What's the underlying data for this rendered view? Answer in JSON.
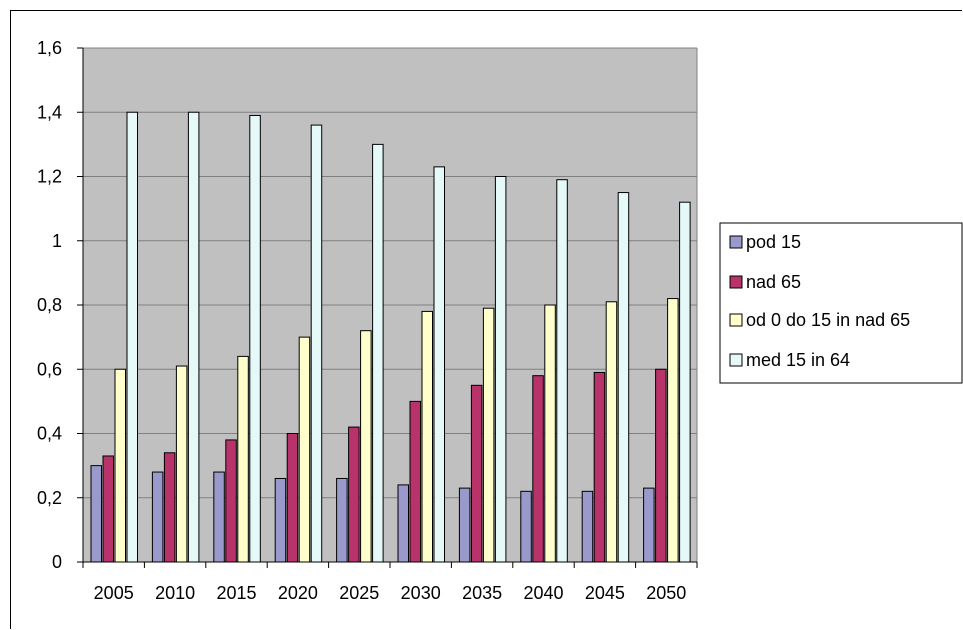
{
  "chart_data": {
    "type": "bar",
    "categories": [
      "2005",
      "2010",
      "2015",
      "2020",
      "2025",
      "2030",
      "2035",
      "2040",
      "2045",
      "2050"
    ],
    "series": [
      {
        "name": "pod 15",
        "color": "#9999cc",
        "values": [
          0.3,
          0.28,
          0.28,
          0.26,
          0.26,
          0.24,
          0.23,
          0.22,
          0.22,
          0.23
        ]
      },
      {
        "name": "nad 65",
        "color": "#b8336a",
        "values": [
          0.33,
          0.34,
          0.38,
          0.4,
          0.42,
          0.5,
          0.55,
          0.58,
          0.59,
          0.6
        ]
      },
      {
        "name": "od 0 do 15 in nad 65",
        "color": "#ffffcc",
        "values": [
          0.6,
          0.61,
          0.64,
          0.7,
          0.72,
          0.78,
          0.79,
          0.8,
          0.81,
          0.82
        ]
      },
      {
        "name": "med 15 in 64",
        "color": "#e6f9f9",
        "values": [
          1.4,
          1.4,
          1.39,
          1.36,
          1.3,
          1.23,
          1.2,
          1.19,
          1.15,
          1.12
        ]
      }
    ],
    "yticks": [
      "0",
      "0,2",
      "0,4",
      "0,6",
      "0,8",
      "1",
      "1,2",
      "1,4",
      "1,6"
    ],
    "ylim": [
      0,
      1.6
    ],
    "grid": true,
    "plot_background": "#c0c0c0",
    "legend_position": "right",
    "title": "",
    "xlabel": "",
    "ylabel": ""
  }
}
